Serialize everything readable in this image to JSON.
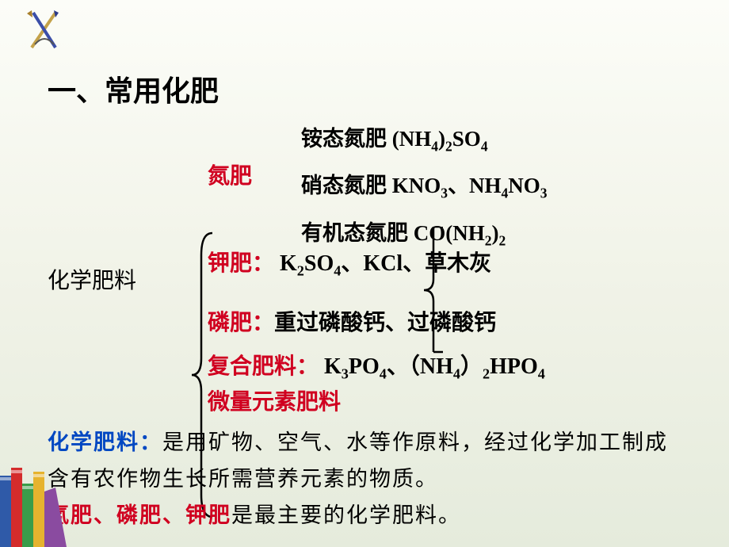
{
  "title": "一、常用化肥",
  "root": "化学肥料",
  "nitrogen": {
    "label": "氮肥",
    "items": [
      {
        "name": "铵态氮肥",
        "formula_html": "(NH<sub>4</sub>)<sub>2</sub>SO<sub>4</sub>"
      },
      {
        "name": "硝态氮肥",
        "formula_html": "KNO<sub>3</sub>、NH<sub>4</sub>NO<sub>3</sub>"
      },
      {
        "name": "有机态氮肥",
        "formula_html": "CO(NH<sub>2</sub>)<sub>2</sub>"
      }
    ]
  },
  "potassium": {
    "label": "钾肥：",
    "content_html": "K<sub>2</sub>SO<sub>4</sub>、KCl、草木灰"
  },
  "phosphate": {
    "label": "磷肥：",
    "content": "重过磷酸钙、过磷酸钙"
  },
  "compound": {
    "label": "复合肥料：",
    "content_html": " K<sub>3</sub>PO<sub>4</sub>、（NH<sub>4</sub>）<sub>2</sub>HPO<sub>4</sub>"
  },
  "micro": {
    "label": "微量元素肥料"
  },
  "definition": {
    "label": "化学肥料：",
    "text": "是用矿物、空气、水等作原料，经过化学加工制成含有农作物生长所需营养元素的物质。"
  },
  "summary": {
    "prefix": "氮肥、磷肥、钾肥",
    "rest": "是最主要的化学肥料。"
  },
  "styles": {
    "red": "#d00020",
    "blue": "#0047c2",
    "black": "#000000"
  }
}
